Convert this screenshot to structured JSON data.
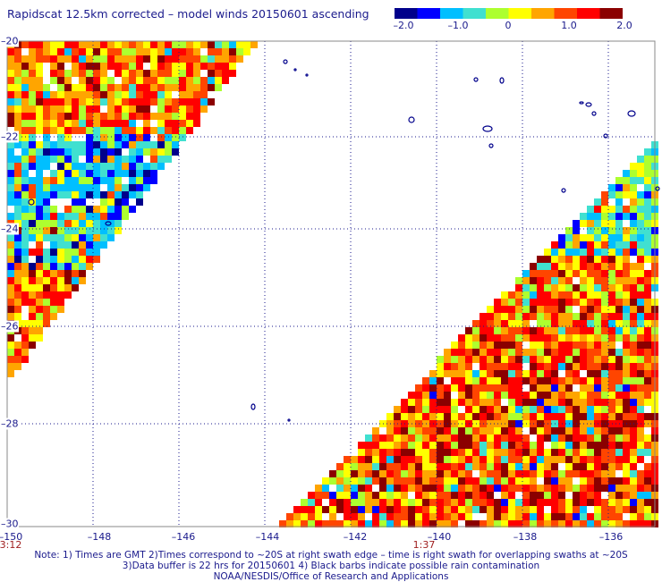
{
  "header": {
    "title": "Rapidscat 12.5km corrected – model winds 20150601 ascending"
  },
  "colorbar": {
    "ticks": [
      "–2.0",
      "–1.0",
      "0",
      "1.0",
      "2.0"
    ],
    "range": [
      -2.0,
      2.0
    ],
    "colors": [
      "#00008b",
      "#0000ff",
      "#00bfff",
      "#40e0d0",
      "#adff2f",
      "#ffff00",
      "#ffa500",
      "#ff4500",
      "#ff0000",
      "#8b0000"
    ]
  },
  "map": {
    "lon_range": [
      -150,
      -135
    ],
    "lat_range": [
      -30,
      -20
    ],
    "lon_ticks": [
      "–150",
      "–148",
      "–146",
      "–144",
      "–142",
      "–140",
      "–138",
      "–136"
    ],
    "lat_ticks": [
      "–20",
      "–22",
      "–24",
      "–26",
      "–28",
      "–30"
    ],
    "grid": "dotted",
    "swath_times": [
      "3:12",
      "1:37"
    ],
    "island_color": "#00008b"
  },
  "footer": {
    "note_line1": "Note: 1) Times are GMT 2)Times correspond to ~20S at right swath edge – time is right swath for overlapping swaths at ~20S",
    "note_line2": "3)Data buffer is 22 hrs for 20150601 4) Black barbs indicate possible rain contamination",
    "note_line3": "NOAA/NESDIS/Office of Research and Applications"
  }
}
